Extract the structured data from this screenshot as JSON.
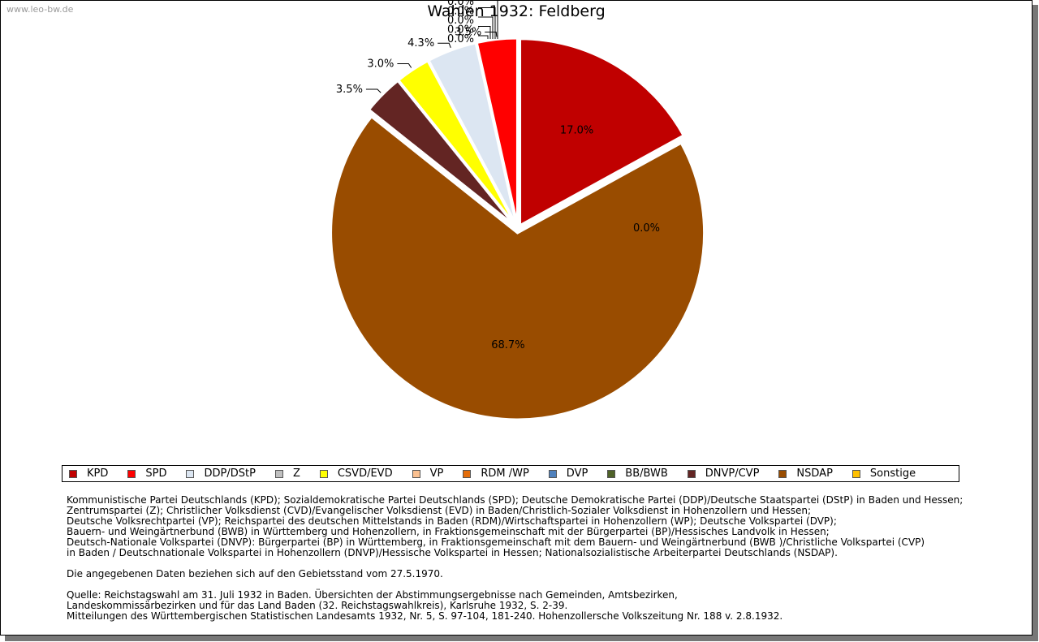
{
  "watermark": "www.leo-bw.de",
  "chart_data": {
    "type": "pie",
    "title": "Wahlen 1932: Feldberg",
    "start_angle_deg": 90,
    "direction": "clockwise",
    "slices": [
      {
        "name": "Sonstige",
        "value": 0.0,
        "label": "0.0%",
        "color": "#FFC000"
      },
      {
        "name": "KPD",
        "value": 17.0,
        "label": "17.0%",
        "color": "#C00000"
      },
      {
        "name": "NSDAP",
        "value": 68.7,
        "label": "68.7%",
        "color": "#994C00"
      },
      {
        "name": "DNVP/CVP",
        "value": 3.5,
        "label": "3.5%",
        "color": "#632523"
      },
      {
        "name": "BB/BWB",
        "value": 0.0,
        "label": "0.0%",
        "color": "#4F6228"
      },
      {
        "name": "DVP",
        "value": 0.0,
        "label": "0.0%",
        "color": "#4F81BD"
      },
      {
        "name": "RDM /WP",
        "value": 0.0,
        "label": "0.0%",
        "color": "#E36C09"
      },
      {
        "name": "VP",
        "value": 0.0,
        "label": "0.0%",
        "color": "#FAC090"
      },
      {
        "name": "Z",
        "value": 0.0,
        "label": "0.0%",
        "color": "#BFBFBF"
      },
      {
        "name": "CSVD/EVD",
        "value": 3.0,
        "label": "3.0%",
        "color": "#FFFF00"
      },
      {
        "name": "DDP/DStP",
        "value": 4.3,
        "label": "4.3%",
        "color": "#DCE6F2"
      },
      {
        "name": "SPD",
        "value": 3.5,
        "label": "3.5%",
        "color": "#FF0000"
      }
    ],
    "legend": {
      "placement": "bottom",
      "entries": [
        {
          "name": "KPD",
          "color": "#C00000"
        },
        {
          "name": "SPD",
          "color": "#FF0000"
        },
        {
          "name": "DDP/DStP",
          "color": "#DCE6F2"
        },
        {
          "name": "Z",
          "color": "#BFBFBF"
        },
        {
          "name": "CSVD/EVD",
          "color": "#FFFF00"
        },
        {
          "name": "VP",
          "color": "#FAC090"
        },
        {
          "name": "RDM /WP",
          "color": "#E36C09"
        },
        {
          "name": "DVP",
          "color": "#4F81BD"
        },
        {
          "name": "BB/BWB",
          "color": "#4F6228"
        },
        {
          "name": "DNVP/CVP",
          "color": "#632523"
        },
        {
          "name": "NSDAP",
          "color": "#994C00"
        },
        {
          "name": "Sonstige",
          "color": "#FFC000"
        }
      ]
    }
  },
  "notes": {
    "parties": [
      "Kommunistische Partei Deutschlands (KPD); Sozialdemokratische Partei Deutschlands (SPD); Deutsche Demokratische Partei (DDP)/Deutsche Staatspartei (DStP) in Baden und Hessen;",
      "Zentrumspartei (Z); Christlicher Volksdienst (CVD)/Evangelischer Volksdienst (EVD) in Baden/Christlich-Sozialer Volksdienst in Hohenzollern und Hessen;",
      "Deutsche Volksrechtpartei (VP); Reichspartei des deutschen Mittelstands in Baden (RDM)/Wirtschaftspartei in Hohenzollern (WP); Deutsche Volkspartei (DVP);",
      "Bauern- und Weingärtnerbund (BWB) in Württemberg und Hohenzollern, in Fraktionsgemeinschaft mit der Bürgerpartei (BP)/Hessisches Landvolk in Hessen;",
      "Deutsch-Nationale Volkspartei (DNVP): Bürgerpartei (BP) in Württemberg, in Fraktionsgemeinschaft mit dem Bauern- und Weingärtnerbund (BWB )/Christliche Volkspartei (CVP)",
      "in Baden / Deutschnationale Volkspartei in Hohenzollern (DNVP)/Hessische Volkspartei in Hessen; Nationalsozialistische Arbeiterpartei Deutschlands (NSDAP)."
    ],
    "territory": "Die angegebenen Daten beziehen sich auf den Gebietsstand vom 27.5.1970.",
    "source": [
      "Quelle: Reichstagswahl am 31. Juli 1932 in Baden. Übersichten der Abstimmungsergebnisse nach Gemeinden, Amtsbezirken,",
      "Landeskommissärbezirken und für das Land Baden (32. Reichstagswahlkreis), Karlsruhe 1932, S. 2-39.",
      "Mitteilungen des Württembergischen Statistischen Landesamts 1932, Nr. 5, S. 97-104, 181-240. Hohenzollersche Volkszeitung Nr. 188 v. 2.8.1932."
    ]
  }
}
